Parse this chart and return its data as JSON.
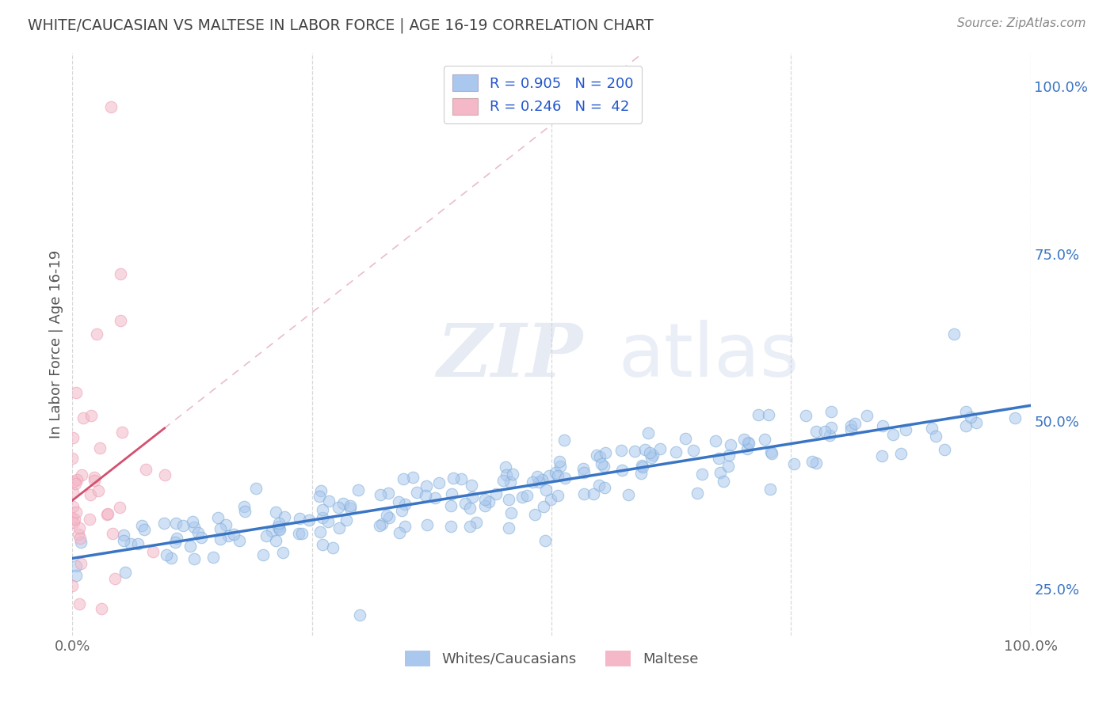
{
  "title": "WHITE/CAUCASIAN VS MALTESE IN LABOR FORCE | AGE 16-19 CORRELATION CHART",
  "source": "Source: ZipAtlas.com",
  "ylabel": "In Labor Force | Age 16-19",
  "xlim": [
    0.0,
    1.0
  ],
  "ylim": [
    0.18,
    1.05
  ],
  "xticklabels_left": "0.0%",
  "xticklabels_right": "100.0%",
  "yticks_right": [
    0.25,
    0.5,
    0.75,
    1.0
  ],
  "ytick_right_labels": [
    "25.0%",
    "50.0%",
    "75.0%",
    "100.0%"
  ],
  "blue_color": "#aac8ee",
  "blue_edge_color": "#7aaad4",
  "blue_line_color": "#3a75c4",
  "pink_color": "#f4b8c8",
  "pink_edge_color": "#e898b0",
  "pink_line_color": "#d45070",
  "pink_dash_color": "#e0a0b8",
  "blue_R": 0.905,
  "blue_N": 200,
  "pink_R": 0.246,
  "pink_N": 42,
  "watermark_zip": "ZIP",
  "watermark_atlas": "atlas",
  "background_color": "#ffffff",
  "grid_color": "#d8d8d8",
  "title_color": "#444444",
  "source_color": "#888888",
  "legend_R_color": "#2255cc",
  "legend_N_color": "#2255cc",
  "blue_seed": 42,
  "pink_seed": 17,
  "dot_alpha": 0.55,
  "dot_size": 110
}
